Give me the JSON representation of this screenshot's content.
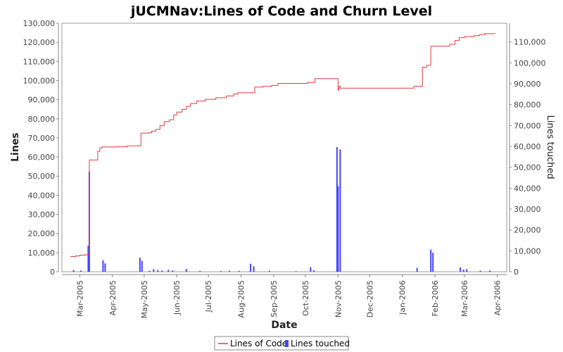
{
  "chart_data": {
    "type": "line",
    "title": "jUCMNav:Lines of Code and Churn Level",
    "xlabel": "Date",
    "ylabel": "Lines",
    "y2label": "Lines touched",
    "xlim": [
      "2005-02-12",
      "2006-04-10"
    ],
    "ylim": [
      0,
      130000
    ],
    "y2lim": [
      0,
      119000
    ],
    "x_ticks": [
      "Mar-2005",
      "Apr-2005",
      "May-2005",
      "Jun-2005",
      "Jul-2005",
      "Aug-2005",
      "Sep-2005",
      "Oct-2005",
      "Nov-2005",
      "Dec-2005",
      "Jan-2006",
      "Feb-2006",
      "Mar-2006",
      "Apr-2006"
    ],
    "y_ticks": [
      "0",
      "10,000",
      "20,000",
      "30,000",
      "40,000",
      "50,000",
      "60,000",
      "70,000",
      "80,000",
      "90,000",
      "100,000",
      "110,000",
      "120,000",
      "130,000"
    ],
    "y2_ticks": [
      "0",
      "10,000",
      "20,000",
      "30,000",
      "40,000",
      "50,000",
      "60,000",
      "70,000",
      "80,000",
      "90,000",
      "100,000",
      "110,000"
    ],
    "legend_position": "bottom",
    "grid": false,
    "series": [
      {
        "name": "Lines of Code",
        "type": "line",
        "color": "#e8393b",
        "axis": "left",
        "points": [
          [
            "2005-02-20",
            7900
          ],
          [
            "2005-02-25",
            8300
          ],
          [
            "2005-03-01",
            8700
          ],
          [
            "2005-03-07",
            9000
          ],
          [
            "2005-03-10",
            58500
          ],
          [
            "2005-03-17",
            58500
          ],
          [
            "2005-03-18",
            63000
          ],
          [
            "2005-03-20",
            64800
          ],
          [
            "2005-03-22",
            65300
          ],
          [
            "2005-04-05",
            65400
          ],
          [
            "2005-04-15",
            65900
          ],
          [
            "2005-04-27",
            66000
          ],
          [
            "2005-04-28",
            72500
          ],
          [
            "2005-05-05",
            72700
          ],
          [
            "2005-05-08",
            73500
          ],
          [
            "2005-05-12",
            74500
          ],
          [
            "2005-05-16",
            76500
          ],
          [
            "2005-05-20",
            78500
          ],
          [
            "2005-05-25",
            79500
          ],
          [
            "2005-05-29",
            82000
          ],
          [
            "2005-06-01",
            83500
          ],
          [
            "2005-06-06",
            85000
          ],
          [
            "2005-06-10",
            86500
          ],
          [
            "2005-06-14",
            88000
          ],
          [
            "2005-06-20",
            89300
          ],
          [
            "2005-06-28",
            90200
          ],
          [
            "2005-07-08",
            91000
          ],
          [
            "2005-07-18",
            92000
          ],
          [
            "2005-07-25",
            93000
          ],
          [
            "2005-07-29",
            93600
          ],
          [
            "2005-08-13",
            93600
          ],
          [
            "2005-08-14",
            96600
          ],
          [
            "2005-08-22",
            97000
          ],
          [
            "2005-08-30",
            97500
          ],
          [
            "2005-09-05",
            98500
          ],
          [
            "2005-09-27",
            98500
          ],
          [
            "2005-10-03",
            99000
          ],
          [
            "2005-10-10",
            101000
          ],
          [
            "2005-10-31",
            101000
          ],
          [
            "2005-11-01",
            95000
          ],
          [
            "2005-11-02",
            97000
          ],
          [
            "2005-11-03",
            96000
          ],
          [
            "2005-12-31",
            96000
          ],
          [
            "2006-01-02",
            96000
          ],
          [
            "2006-01-10",
            96000
          ],
          [
            "2006-01-12",
            97000
          ],
          [
            "2006-01-20",
            107000
          ],
          [
            "2006-01-24",
            108000
          ],
          [
            "2006-01-27",
            108000
          ],
          [
            "2006-01-28",
            118000
          ],
          [
            "2006-02-10",
            118000
          ],
          [
            "2006-02-15",
            119000
          ],
          [
            "2006-02-20",
            121000
          ],
          [
            "2006-02-24",
            122500
          ],
          [
            "2006-03-01",
            123000
          ],
          [
            "2006-03-10",
            123500
          ],
          [
            "2006-03-15",
            124000
          ],
          [
            "2006-03-20",
            124500
          ],
          [
            "2006-03-30",
            124600
          ]
        ]
      },
      {
        "name": "Lines touched",
        "type": "bar",
        "color": "#4444ff",
        "axis": "right",
        "points": [
          [
            "2005-02-23",
            800
          ],
          [
            "2005-03-02",
            600
          ],
          [
            "2005-03-09",
            12500
          ],
          [
            "2005-03-10",
            48000
          ],
          [
            "2005-03-23",
            5500
          ],
          [
            "2005-03-25",
            4000
          ],
          [
            "2005-04-27",
            6700
          ],
          [
            "2005-04-29",
            5200
          ],
          [
            "2005-05-06",
            500
          ],
          [
            "2005-05-10",
            1200
          ],
          [
            "2005-05-14",
            800
          ],
          [
            "2005-05-18",
            600
          ],
          [
            "2005-05-24",
            900
          ],
          [
            "2005-05-28",
            600
          ],
          [
            "2005-06-10",
            1300
          ],
          [
            "2005-06-23",
            400
          ],
          [
            "2005-07-13",
            400
          ],
          [
            "2005-07-21",
            500
          ],
          [
            "2005-07-30",
            400
          ],
          [
            "2005-08-10",
            3800
          ],
          [
            "2005-08-13",
            2600
          ],
          [
            "2005-08-28",
            500
          ],
          [
            "2005-09-22",
            300
          ],
          [
            "2005-10-06",
            2200
          ],
          [
            "2005-10-09",
            700
          ],
          [
            "2005-10-31",
            59700
          ],
          [
            "2005-11-01",
            41000
          ],
          [
            "2005-11-03",
            58600
          ],
          [
            "2006-01-15",
            1900
          ],
          [
            "2006-01-28",
            10600
          ],
          [
            "2006-01-30",
            9100
          ],
          [
            "2006-02-25",
            2100
          ],
          [
            "2006-02-28",
            1000
          ],
          [
            "2006-03-03",
            1200
          ],
          [
            "2006-03-16",
            500
          ],
          [
            "2006-03-25",
            600
          ]
        ]
      }
    ]
  }
}
